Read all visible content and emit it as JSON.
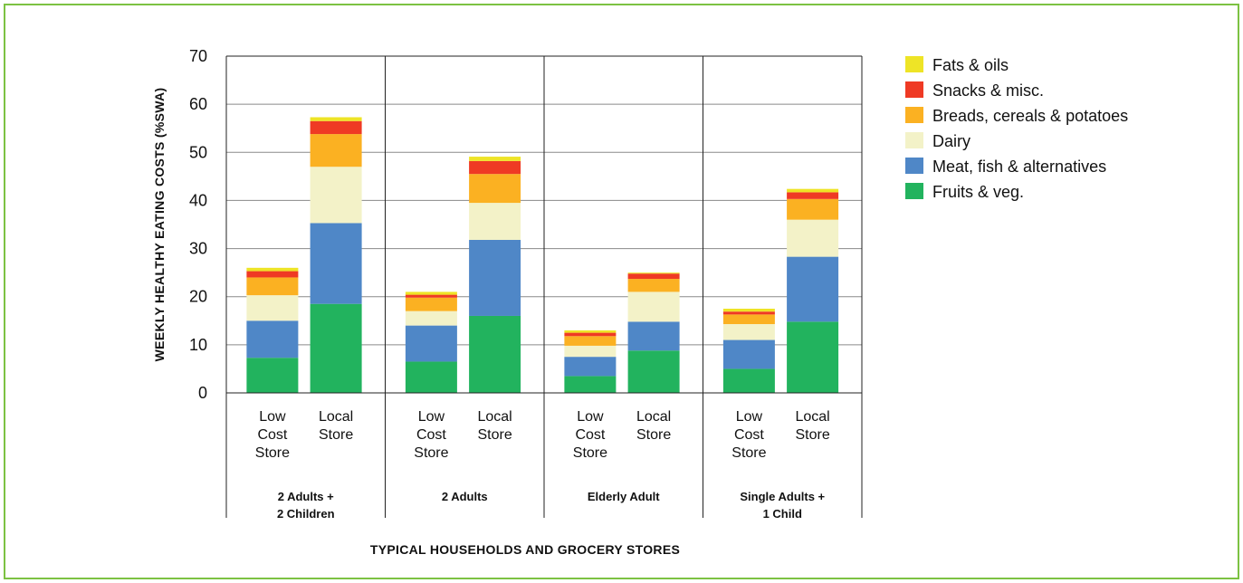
{
  "chart_data": {
    "type": "bar",
    "stacked": true,
    "title": "",
    "xlabel": "TYPICAL HOUSEHOLDS AND GROCERY STORES",
    "ylabel": "WEEKLY HEALTHY EATING COSTS (%SWA)",
    "ylim": [
      0,
      70
    ],
    "yticks": [
      0,
      10,
      20,
      30,
      40,
      50,
      60,
      70
    ],
    "grid": true,
    "legend_position": "right",
    "groups": [
      {
        "label": "2 Adults +\n2 Children",
        "categories": [
          "Low\nCost\nStore",
          "Local\nStore"
        ]
      },
      {
        "label": "2 Adults",
        "categories": [
          "Low\nCost\nStore",
          "Local\nStore"
        ]
      },
      {
        "label": "Elderly Adult",
        "categories": [
          "Low\nCost\nStore",
          "Local\nStore"
        ]
      },
      {
        "label": "Single Adults +\n1 Child",
        "categories": [
          "Low\nCost\nStore",
          "Local\nStore"
        ]
      }
    ],
    "series": [
      {
        "name": "Fruits & veg.",
        "color": "#22b35e",
        "values": [
          7.3,
          18.5,
          6.5,
          16.0,
          3.5,
          8.8,
          5.0,
          14.8
        ]
      },
      {
        "name": "Meat, fish & alternatives",
        "color": "#4f87c7",
        "values": [
          7.7,
          16.8,
          7.5,
          15.8,
          4.0,
          6.0,
          6.0,
          13.5
        ]
      },
      {
        "name": "Dairy",
        "color": "#f3f2c8",
        "values": [
          5.3,
          11.7,
          3.0,
          7.7,
          2.3,
          6.2,
          3.3,
          7.7
        ]
      },
      {
        "name": "Breads, cereals & potatoes",
        "color": "#fbb122",
        "values": [
          3.7,
          6.8,
          2.8,
          6.0,
          2.0,
          2.7,
          2.0,
          4.3
        ]
      },
      {
        "name": "Snacks & misc.",
        "color": "#ef3a24",
        "values": [
          1.3,
          2.7,
          0.6,
          2.7,
          0.7,
          1.1,
          0.6,
          1.4
        ]
      },
      {
        "name": "Fats & oils",
        "color": "#eee426",
        "values": [
          0.7,
          0.8,
          0.6,
          0.9,
          0.5,
          0.2,
          0.6,
          0.7
        ]
      }
    ]
  }
}
